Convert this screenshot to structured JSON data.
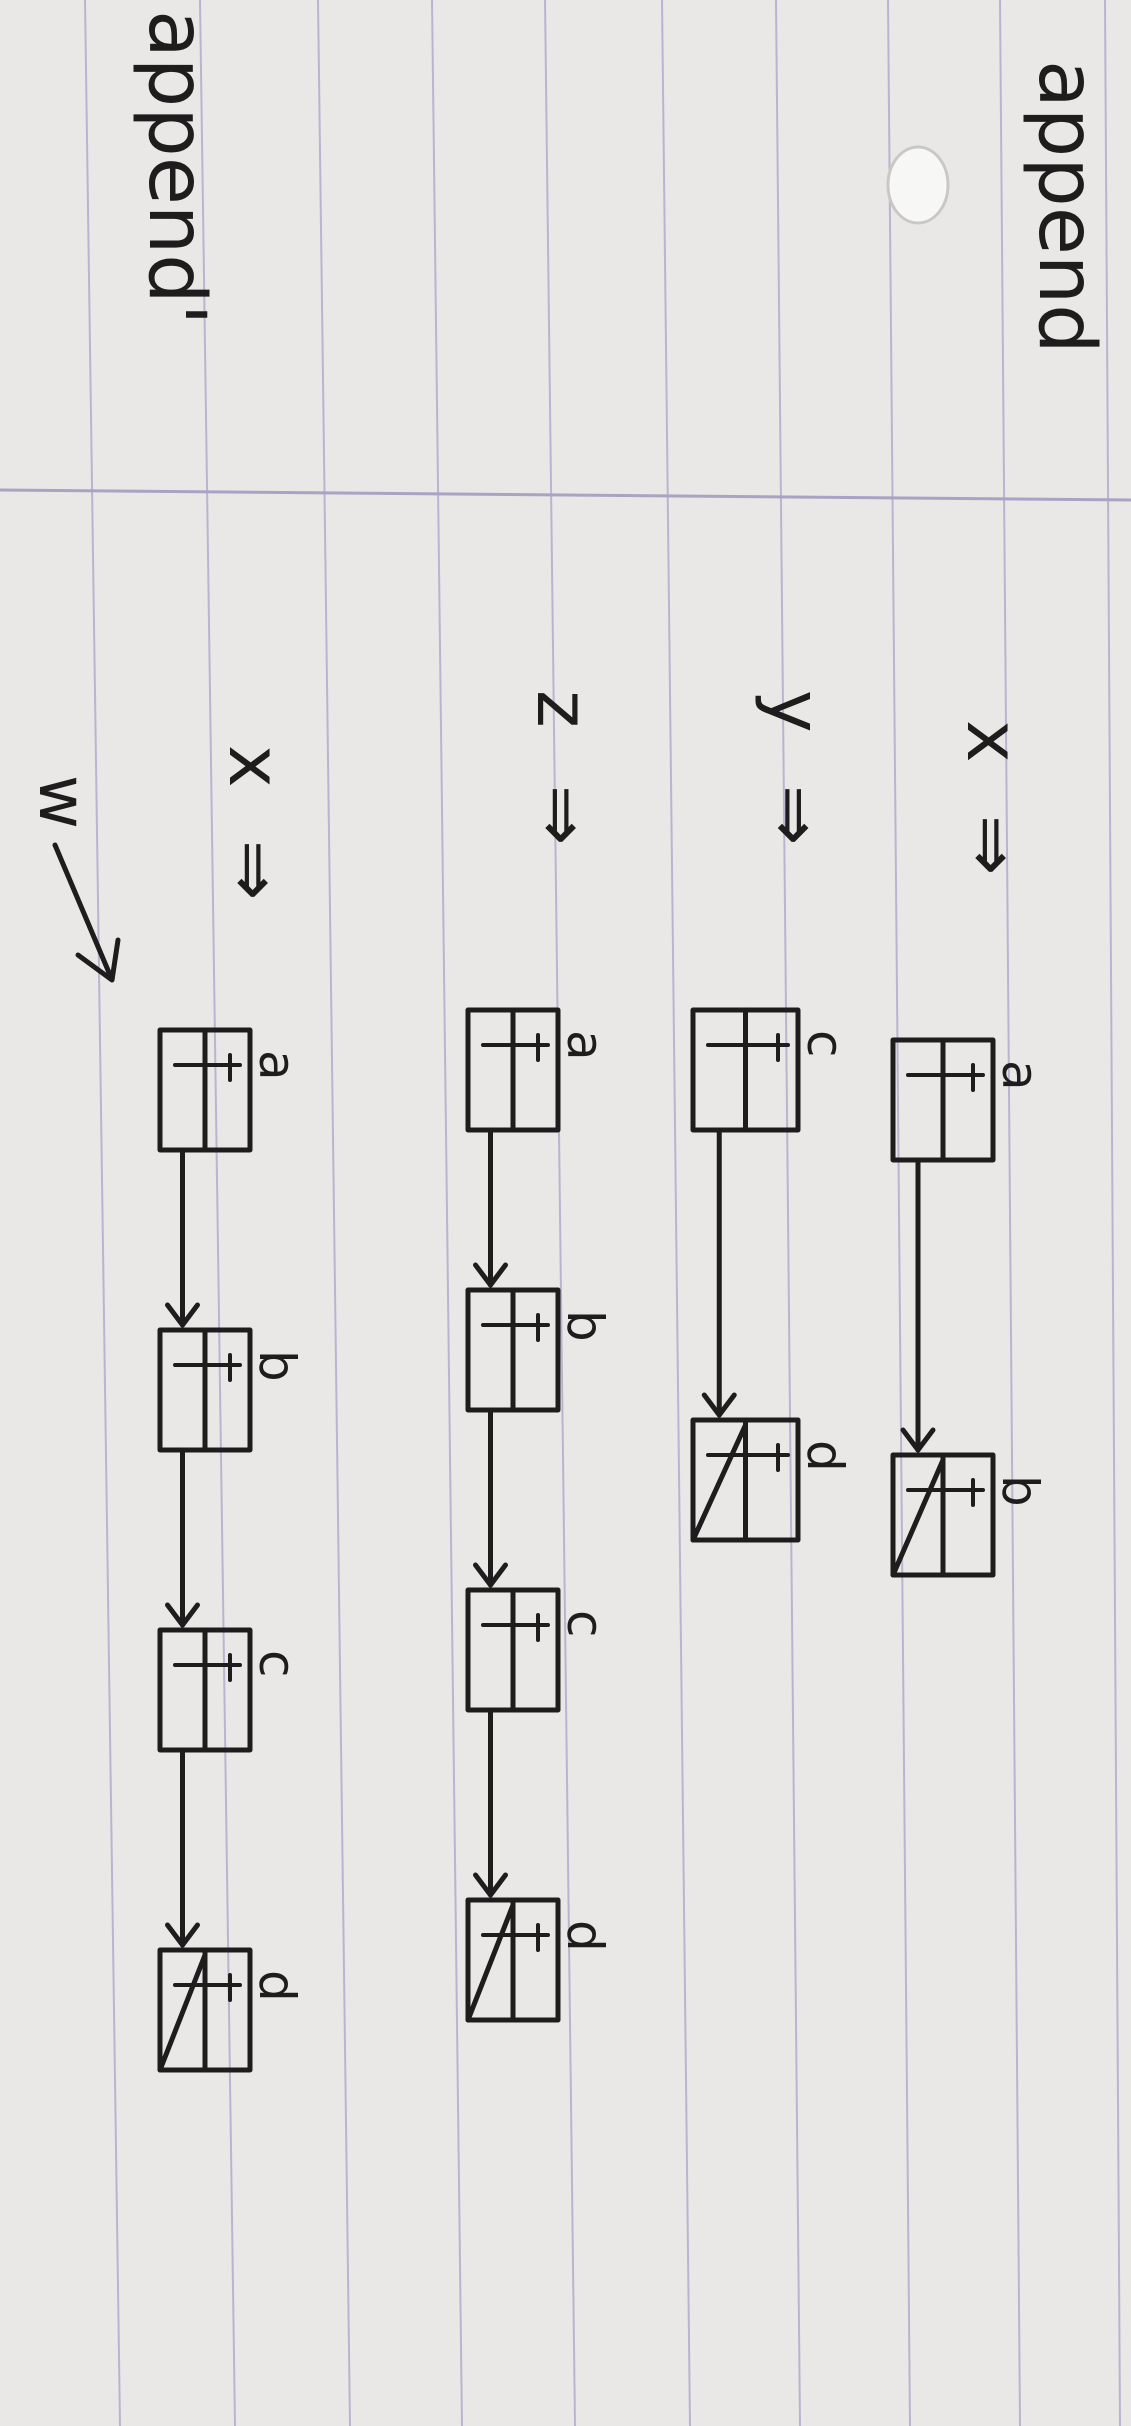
{
  "page": {
    "paper_color": "#e9e8e6",
    "rule_color": "#a9a3c4",
    "ink_color": "#1e1c1d",
    "headings": [
      "append",
      "append'"
    ]
  },
  "diagram": {
    "rows": [
      {
        "var": "x",
        "arrow": "⇒",
        "nodes": [
          "a",
          "b"
        ]
      },
      {
        "var": "y",
        "arrow": "⇒",
        "nodes": [
          "c",
          "d"
        ]
      },
      {
        "var": "z",
        "arrow": "⇒",
        "nodes": [
          "a",
          "b",
          "c",
          "d"
        ]
      },
      {
        "var": "x",
        "arrow": "⇒",
        "nodes": [
          "a",
          "b",
          "c",
          "d"
        ]
      }
    ],
    "w_label": "w"
  }
}
